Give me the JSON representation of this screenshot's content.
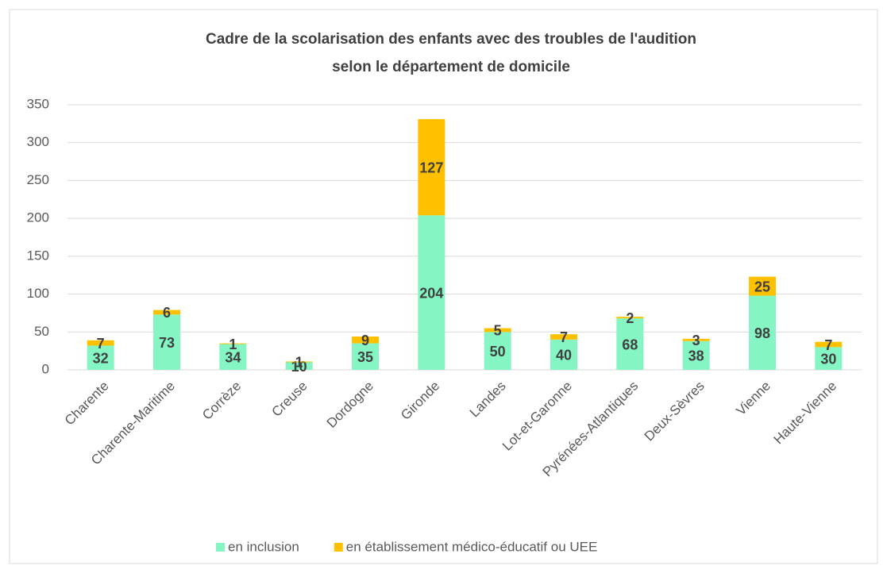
{
  "chart_data": {
    "type": "stacked_bar",
    "title": [
      "Cadre de la scolarisation des enfants avec des troubles de l'audition",
      "selon le département de domicile"
    ],
    "categories": [
      "Charente",
      "Charente-Maritime",
      "Corrèze",
      "Creuse",
      "Dordogne",
      "Gironde",
      "Landes",
      "Lot-et-Garonne",
      "Pyrénées-Atlantiques",
      "Deux-Sèvres",
      "Vienne",
      "Haute-Vienne"
    ],
    "series": [
      {
        "name": "en inclusion",
        "color": "#84f5c3",
        "values": [
          32,
          73,
          34,
          10,
          35,
          204,
          50,
          40,
          68,
          38,
          98,
          30
        ]
      },
      {
        "name": "en établissement médico-éducatif ou UEE",
        "color": "#ffc000",
        "values": [
          7,
          6,
          1,
          1,
          9,
          127,
          5,
          7,
          2,
          3,
          25,
          7
        ]
      }
    ],
    "ylim": [
      0,
      350
    ],
    "yticks": [
      0,
      50,
      100,
      150,
      200,
      250,
      300,
      350
    ],
    "grid": true,
    "legend": "bottom"
  }
}
